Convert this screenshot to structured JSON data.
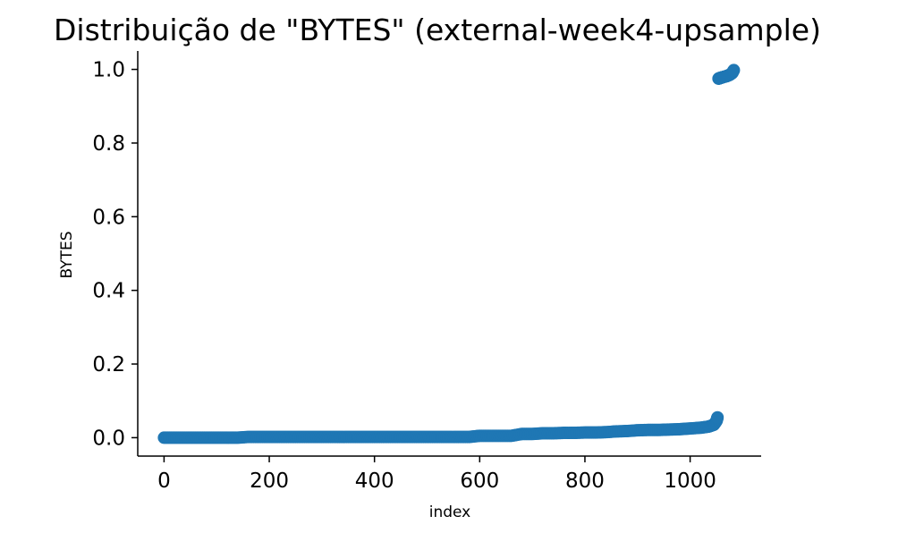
{
  "chart_data": {
    "type": "scatter",
    "title": "Distribuição de \"BYTES\" (external-week4-upsample)",
    "xlabel": "index",
    "ylabel": "BYTES",
    "xlim": [
      -50,
      1135
    ],
    "ylim": [
      -0.05,
      1.05
    ],
    "xticks": [
      0,
      200,
      400,
      600,
      800,
      1000
    ],
    "yticks": [
      0.0,
      0.2,
      0.4,
      0.6,
      0.8,
      1.0
    ],
    "xtick_labels": [
      "0",
      "200",
      "400",
      "600",
      "800",
      "1000"
    ],
    "ytick_labels": [
      "0.0",
      "0.2",
      "0.4",
      "0.6",
      "0.8",
      "1.0"
    ],
    "grid": false,
    "color": "#1f77b4",
    "series": [
      {
        "x": [
          0,
          20,
          40,
          60,
          80,
          100,
          120,
          140,
          160,
          180,
          200,
          220,
          240,
          260,
          280,
          300,
          320,
          340,
          360,
          380,
          400,
          420,
          440,
          460,
          480,
          500,
          520,
          540,
          560,
          580,
          600,
          620,
          640,
          660,
          680,
          700,
          720,
          740,
          760,
          780,
          800,
          820,
          840,
          860,
          880,
          900,
          920,
          940,
          960,
          980,
          1000,
          1020,
          1035,
          1045,
          1050,
          1052,
          1054,
          1056,
          1058,
          1060,
          1065,
          1070,
          1075,
          1080,
          1083
        ],
        "y": [
          0.0,
          0.0,
          0.0,
          0.0,
          0.0,
          0.0,
          0.0,
          0.0,
          0.002,
          0.002,
          0.002,
          0.002,
          0.002,
          0.002,
          0.002,
          0.002,
          0.002,
          0.002,
          0.002,
          0.002,
          0.002,
          0.002,
          0.002,
          0.002,
          0.002,
          0.002,
          0.002,
          0.002,
          0.002,
          0.002,
          0.005,
          0.005,
          0.005,
          0.005,
          0.01,
          0.01,
          0.012,
          0.012,
          0.013,
          0.013,
          0.014,
          0.014,
          0.015,
          0.017,
          0.018,
          0.02,
          0.021,
          0.021,
          0.022,
          0.023,
          0.025,
          0.027,
          0.03,
          0.035,
          0.045,
          0.055,
          0.975,
          0.976,
          0.977,
          0.978,
          0.98,
          0.982,
          0.985,
          0.99,
          0.998
        ]
      }
    ]
  }
}
